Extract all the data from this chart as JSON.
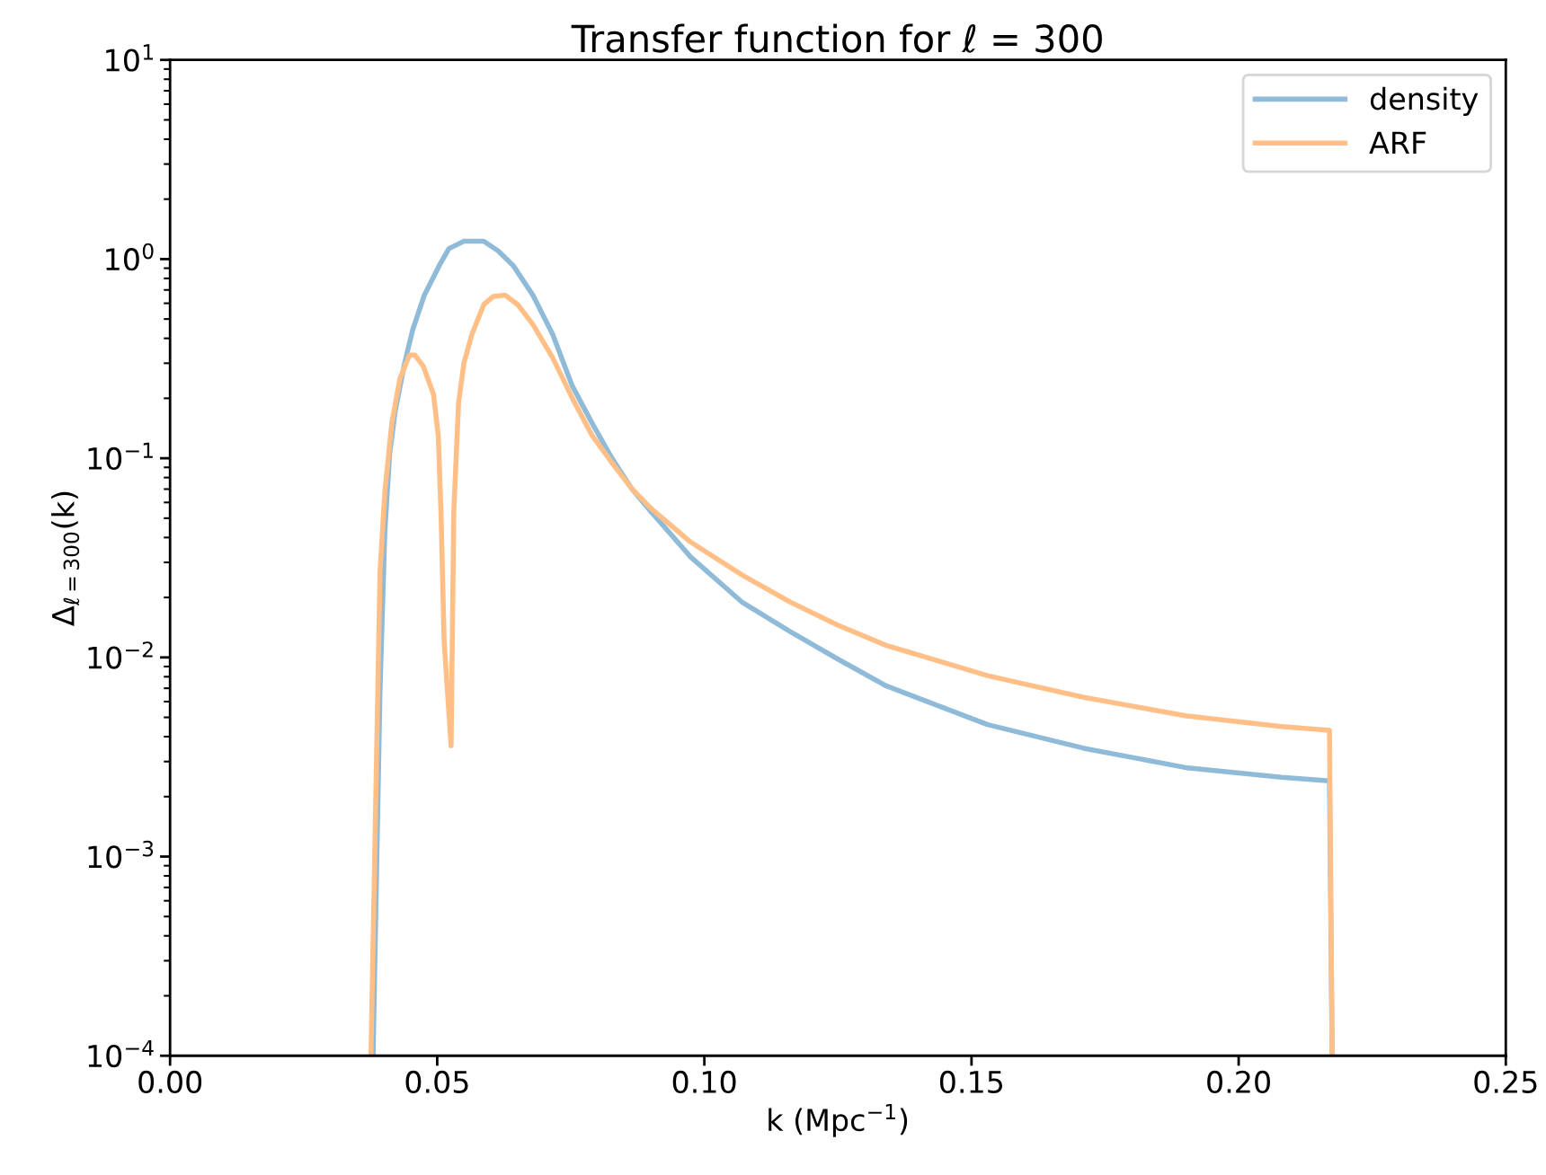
{
  "chart_data": {
    "type": "line",
    "title": "Transfer function for ℓ = 300",
    "xlabel": "k (Mpc$^{−1}$)",
    "ylabel": "Δ$_{ℓ=300}$(k)",
    "log": "y",
    "xlim": [
      0.0,
      0.25
    ],
    "xticks": [
      {
        "value": 0.0,
        "label": "0.00"
      },
      {
        "value": 0.05,
        "label": "0.05"
      },
      {
        "value": 0.1,
        "label": "0.10"
      },
      {
        "value": 0.15,
        "label": "0.15"
      },
      {
        "value": 0.2,
        "label": "0.20"
      },
      {
        "value": 0.25,
        "label": "0.25"
      }
    ],
    "ylim": [
      0.0001,
      10
    ],
    "yticks": [
      {
        "value": 0.0001,
        "label": "10$^{−4}$"
      },
      {
        "value": 0.001,
        "label": "10$^{−3}$"
      },
      {
        "value": 0.01,
        "label": "10$^{−2}$"
      },
      {
        "value": 0.1,
        "label": "10$^{−1}$"
      },
      {
        "value": 1,
        "label": "10$^{0}$"
      },
      {
        "value": 10,
        "label": "10$^{1}$"
      }
    ],
    "grid": false,
    "legend": "top right",
    "marker": "none",
    "line_style": "solid",
    "series": [
      {
        "name": "density",
        "color": "#8fbbd9",
        "x": [
          0.038,
          0.0393,
          0.0402,
          0.0411,
          0.0421,
          0.0439,
          0.0454,
          0.0476,
          0.0504,
          0.0522,
          0.055,
          0.0587,
          0.0614,
          0.0642,
          0.0679,
          0.0716,
          0.0753,
          0.079,
          0.0827,
          0.0863,
          0.09,
          0.0974,
          0.107,
          0.116,
          0.125,
          0.134,
          0.153,
          0.171,
          0.19,
          0.208,
          0.217,
          0.2175
        ],
        "values": [
          0.0001,
          0.0069,
          0.043,
          0.105,
          0.17,
          0.3,
          0.44,
          0.66,
          0.93,
          1.13,
          1.23,
          1.23,
          1.1,
          0.93,
          0.66,
          0.42,
          0.23,
          0.15,
          0.1,
          0.071,
          0.054,
          0.032,
          0.019,
          0.0135,
          0.0098,
          0.0072,
          0.0046,
          0.0035,
          0.0028,
          0.0025,
          0.0024,
          0.0001
        ]
      },
      {
        "name": "ARF",
        "color": "#ffbf86",
        "x": [
          0.0376,
          0.0393,
          0.0402,
          0.0415,
          0.043,
          0.0448,
          0.0458,
          0.0474,
          0.0493,
          0.0502,
          0.0507,
          0.0513,
          0.0526,
          0.0531,
          0.054,
          0.055,
          0.0565,
          0.0587,
          0.0605,
          0.0627,
          0.0651,
          0.0679,
          0.0716,
          0.0753,
          0.079,
          0.0827,
          0.0863,
          0.09,
          0.0974,
          0.107,
          0.116,
          0.125,
          0.134,
          0.153,
          0.171,
          0.19,
          0.208,
          0.217,
          0.2175
        ],
        "values": [
          0.0001,
          0.027,
          0.068,
          0.15,
          0.25,
          0.33,
          0.33,
          0.29,
          0.21,
          0.13,
          0.054,
          0.012,
          0.0036,
          0.054,
          0.19,
          0.3,
          0.42,
          0.59,
          0.65,
          0.66,
          0.59,
          0.47,
          0.32,
          0.2,
          0.13,
          0.095,
          0.071,
          0.056,
          0.038,
          0.026,
          0.019,
          0.0145,
          0.0115,
          0.0081,
          0.0063,
          0.0051,
          0.0045,
          0.0043,
          0.0001
        ]
      }
    ]
  }
}
